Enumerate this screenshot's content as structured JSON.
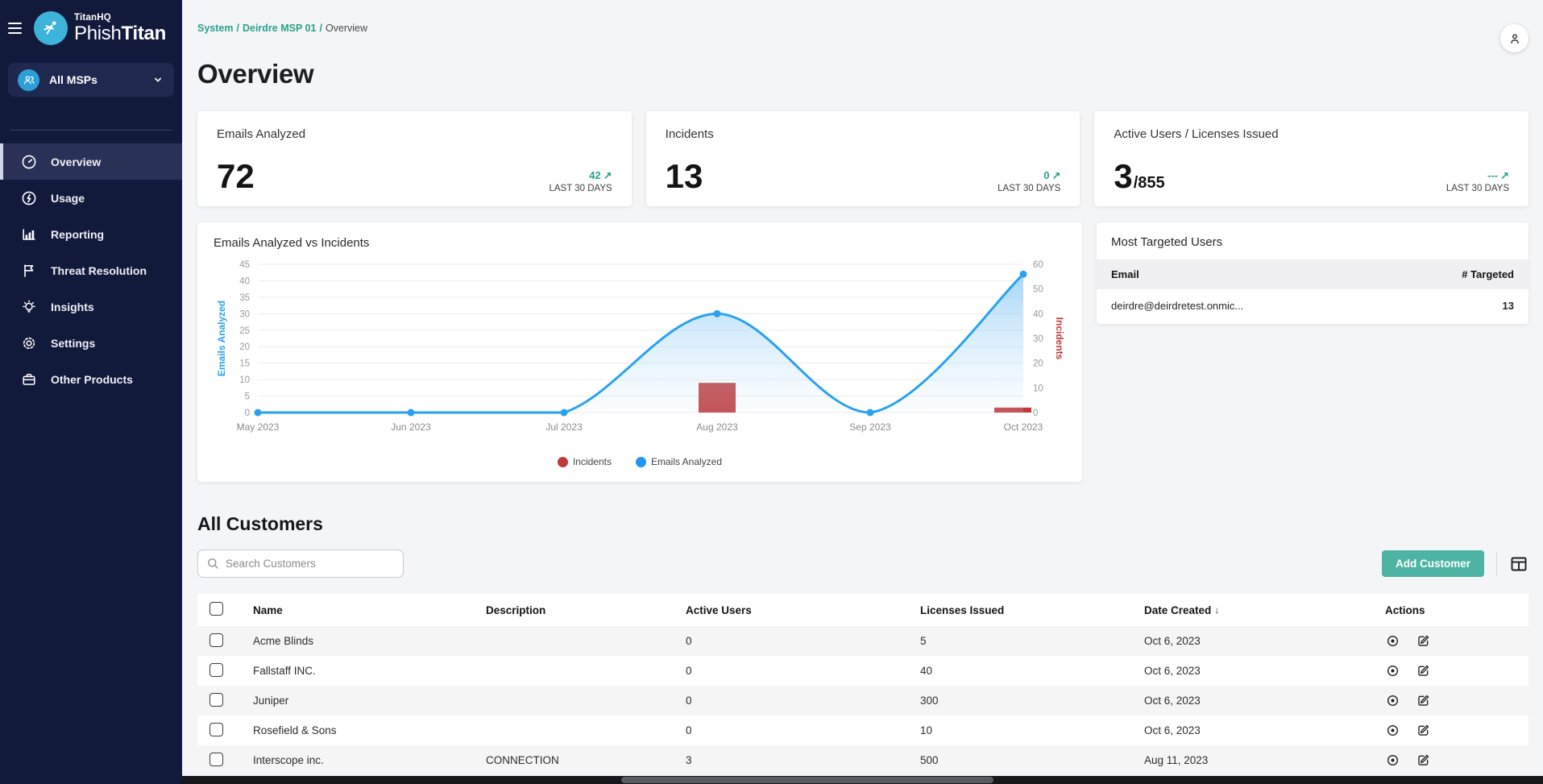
{
  "colors": {
    "sidebar_bg": "#121a3b",
    "accent_teal": "#2ba08c",
    "button_teal": "#4db3a2",
    "chart_blue": "#2aa2f0",
    "chart_red": "#c0393b"
  },
  "sidebar": {
    "brand": {
      "company": "TitanHQ",
      "product_light": "Phish",
      "product_bold": "Titan"
    },
    "msp_selector": {
      "label": "All MSPs",
      "icon": "people-icon",
      "chevron": "chevron-down-icon"
    },
    "items": [
      {
        "label": "Overview",
        "icon": "gauge-icon",
        "active": true
      },
      {
        "label": "Usage",
        "icon": "power-circle-icon",
        "active": false
      },
      {
        "label": "Reporting",
        "icon": "bar-chart-icon",
        "active": false
      },
      {
        "label": "Threat Resolution",
        "icon": "flag-icon",
        "active": false
      },
      {
        "label": "Insights",
        "icon": "lightbulb-icon",
        "active": false
      },
      {
        "label": "Settings",
        "icon": "gear-icon",
        "active": false
      },
      {
        "label": "Other Products",
        "icon": "briefcase-icon",
        "active": false
      }
    ]
  },
  "header": {
    "breadcrumb": [
      "System",
      "Deirdre MSP 01",
      "Overview"
    ],
    "title": "Overview"
  },
  "stats": [
    {
      "label": "Emails Analyzed",
      "value": "72",
      "suffix": "",
      "trend": "42",
      "period": "LAST 30 DAYS"
    },
    {
      "label": "Incidents",
      "value": "13",
      "suffix": "",
      "trend": "0",
      "period": "LAST 30 DAYS"
    },
    {
      "label": "Active Users / Licenses Issued",
      "value": "3",
      "suffix": "/855",
      "trend": "---",
      "period": "LAST 30 DAYS"
    }
  ],
  "chart_data": {
    "type": "line+bar",
    "title": "Emails Analyzed vs Incidents",
    "categories": [
      "May 2023",
      "Jun 2023",
      "Jul 2023",
      "Aug 2023",
      "Sep 2023",
      "Oct 2023"
    ],
    "series": [
      {
        "name": "Emails Analyzed",
        "type": "line",
        "axis": "left",
        "color": "#2aa2f0",
        "legend_color": "#2196f3",
        "values": [
          0,
          0,
          0,
          30,
          0,
          42
        ]
      },
      {
        "name": "Incidents",
        "type": "bar",
        "axis": "right",
        "color": "#c0393b",
        "legend_color": "#c0393b",
        "values": [
          0,
          0,
          0,
          12,
          0,
          2
        ]
      }
    ],
    "left_axis": {
      "label": "Emails Analyzed",
      "min": 0,
      "max": 45,
      "step": 5,
      "color": "#2aa2f0"
    },
    "right_axis": {
      "label": "Incidents",
      "min": 0,
      "max": 60,
      "step": 10,
      "color": "#c0393b"
    },
    "legend": [
      "Incidents",
      "Emails Analyzed"
    ],
    "grid": true,
    "legend_position": "bottom"
  },
  "most_targeted": {
    "title": "Most Targeted Users",
    "columns": [
      "Email",
      "# Targeted"
    ],
    "rows": [
      {
        "email": "deirdre@deirdretest.onmic...",
        "targeted": "13"
      }
    ]
  },
  "customers": {
    "title": "All Customers",
    "search_placeholder": "Search Customers",
    "add_button": "Add Customer",
    "columns": [
      "Name",
      "Description",
      "Active Users",
      "Licenses Issued",
      "Date Created",
      "Actions"
    ],
    "rows": [
      {
        "name": "Acme Blinds",
        "description": "",
        "active_users": "0",
        "licenses": "5",
        "date": "Oct 6, 2023"
      },
      {
        "name": "Fallstaff INC.",
        "description": "",
        "active_users": "0",
        "licenses": "40",
        "date": "Oct 6, 2023"
      },
      {
        "name": "Juniper",
        "description": "",
        "active_users": "0",
        "licenses": "300",
        "date": "Oct 6, 2023"
      },
      {
        "name": "Rosefield & Sons",
        "description": "",
        "active_users": "0",
        "licenses": "10",
        "date": "Oct 6, 2023"
      },
      {
        "name": "Interscope inc.",
        "description": "CONNECTION",
        "active_users": "3",
        "licenses": "500",
        "date": "Aug 11, 2023"
      }
    ]
  }
}
